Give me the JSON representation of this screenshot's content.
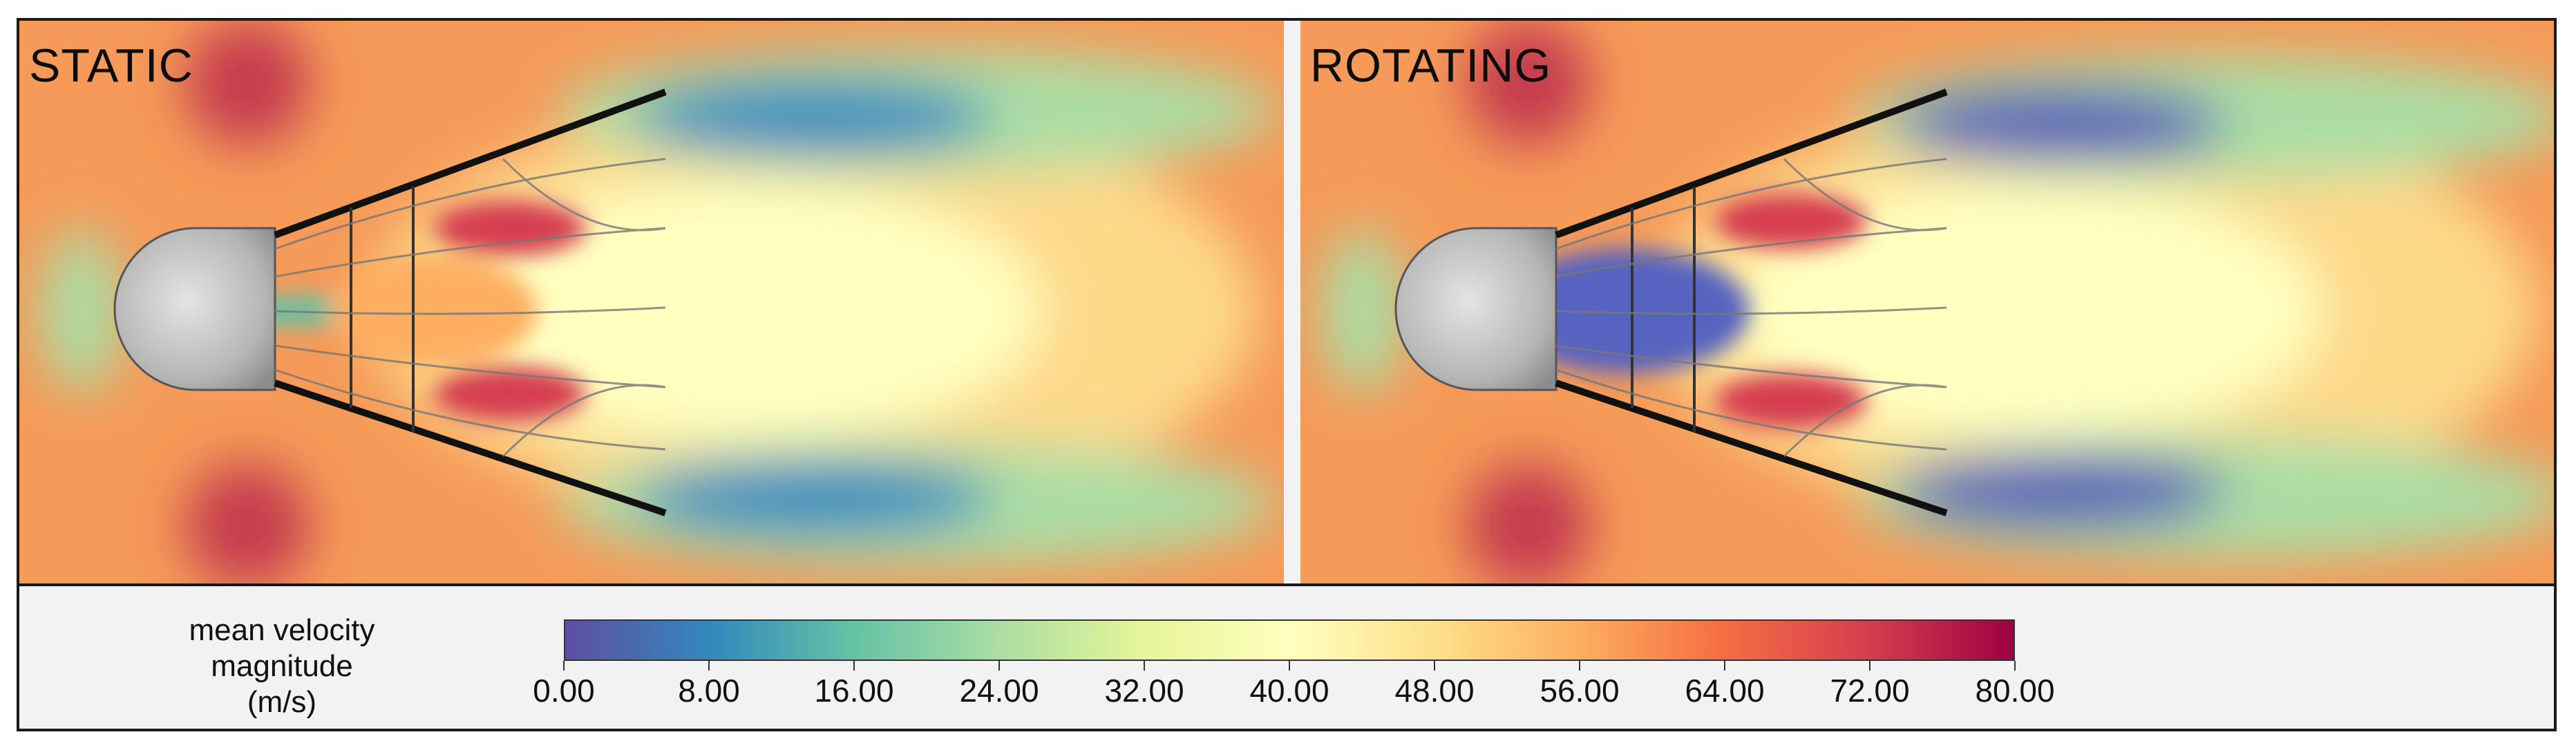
{
  "panels": {
    "static": {
      "title": "STATIC"
    },
    "rotating": {
      "title": "ROTATING"
    }
  },
  "legend": {
    "label_line1": "mean velocity",
    "label_line2": "magnitude (m/s)",
    "ticks": [
      "0.00",
      "8.00",
      "16.00",
      "24.00",
      "32.00",
      "40.00",
      "48.00",
      "56.00",
      "64.00",
      "72.00",
      "80.00"
    ],
    "colormap": [
      "#5e4fa2",
      "#3288bd",
      "#66c2a5",
      "#abdda4",
      "#e6f598",
      "#ffffbf",
      "#fee08b",
      "#fdae61",
      "#f46d43",
      "#d53e4f",
      "#9e0142"
    ]
  }
}
